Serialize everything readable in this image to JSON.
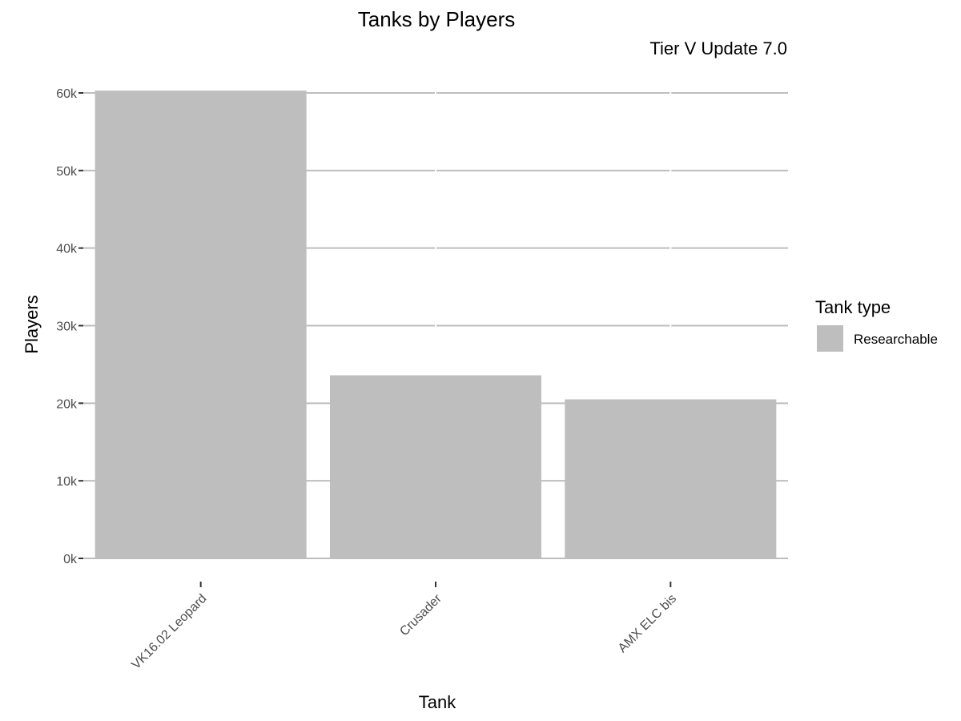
{
  "chart_data": {
    "type": "bar",
    "title": "Tanks by Players",
    "subtitle": "Tier V Update 7.0",
    "xlabel": "Tank",
    "ylabel": "Players",
    "categories": [
      "VK16.02 Leopard",
      "Crusader",
      "AMX ELC bis"
    ],
    "series": [
      {
        "name": "Researchable",
        "values": [
          60300,
          23600,
          20500
        ],
        "color": "#bebebe"
      }
    ],
    "ylim": [
      0,
      60000
    ],
    "yticks": [
      0,
      10000,
      20000,
      30000,
      40000,
      50000,
      60000
    ],
    "ytick_labels": [
      "0k",
      "10k",
      "20k",
      "30k",
      "40k",
      "50k",
      "60k"
    ],
    "grid": true,
    "grid_color": "#bebebe",
    "tick_label_color": "#4d4d4d",
    "legend": {
      "title": "Tank type",
      "position": "right",
      "entries": [
        "Researchable"
      ]
    }
  }
}
